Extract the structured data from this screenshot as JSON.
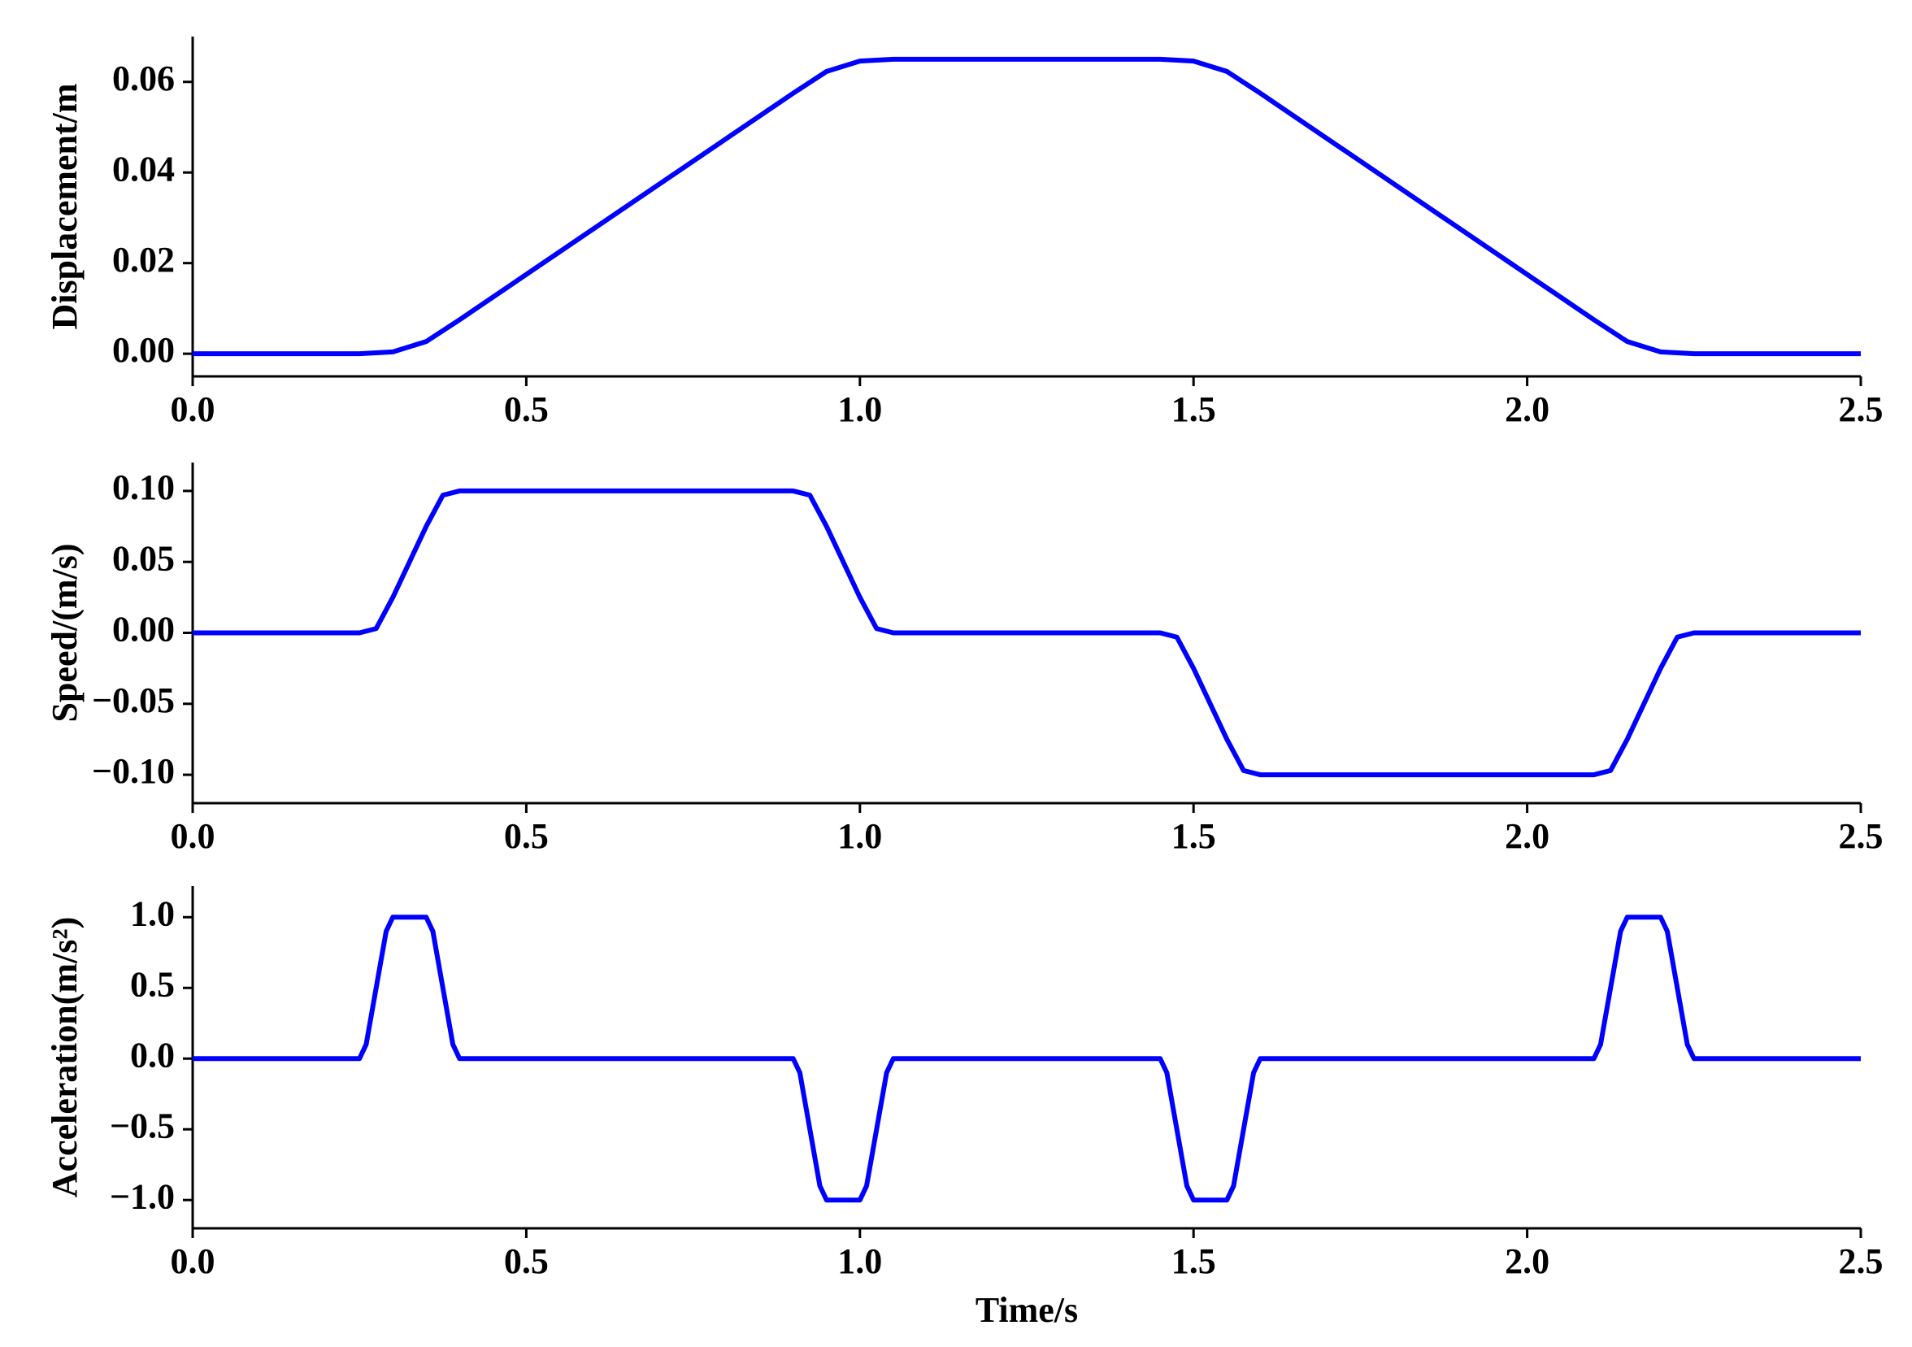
{
  "chart_data": [
    {
      "type": "line",
      "ylabel": "Displacement/m",
      "color": "#0000ff",
      "x": [
        0,
        0.25,
        0.3,
        0.35,
        0.4,
        0.9,
        0.95,
        1.0,
        1.05,
        1.45,
        1.5,
        1.55,
        1.6,
        2.1,
        2.15,
        2.2,
        2.25,
        2.5
      ],
      "values": [
        0,
        0,
        0.0004,
        0.0027,
        0.0075,
        0.0575,
        0.0623,
        0.0646,
        0.065,
        0.065,
        0.0646,
        0.0623,
        0.0575,
        0.0075,
        0.0027,
        0.0004,
        0,
        0
      ],
      "xlim": [
        0,
        2.5
      ],
      "xticks": [
        {
          "value": 0,
          "label": "0.0"
        },
        0.5,
        {
          "value": 1,
          "label": "1.0"
        },
        1.5,
        {
          "value": 2,
          "label": "2.0"
        },
        2.5
      ],
      "ylim": [
        -0.005,
        0.07
      ],
      "yticks": [
        {
          "value": 0,
          "label": "0.00"
        },
        0.02,
        0.04,
        0.06
      ]
    },
    {
      "type": "line",
      "ylabel": "Speed/(m/s)",
      "color": "#0000ff",
      "x": [
        0,
        0.25,
        0.275,
        0.3,
        0.35,
        0.375,
        0.4,
        0.9,
        0.925,
        0.95,
        1.0,
        1.025,
        1.05,
        1.45,
        1.475,
        1.5,
        1.55,
        1.575,
        1.6,
        2.1,
        2.125,
        2.15,
        2.2,
        2.225,
        2.25,
        2.5
      ],
      "values": [
        0,
        0,
        0.003,
        0.025,
        0.075,
        0.097,
        0.1,
        0.1,
        0.097,
        0.075,
        0.025,
        0.003,
        0,
        0,
        -0.003,
        -0.025,
        -0.075,
        -0.097,
        -0.1,
        -0.1,
        -0.097,
        -0.075,
        -0.025,
        -0.003,
        0,
        0
      ],
      "xlim": [
        0,
        2.5
      ],
      "xticks": [
        {
          "value": 0,
          "label": "0.0"
        },
        0.5,
        {
          "value": 1,
          "label": "1.0"
        },
        1.5,
        {
          "value": 2,
          "label": "2.0"
        },
        2.5
      ],
      "ylim": [
        -0.12,
        0.12
      ],
      "yticks": [
        {
          "value": -0.1,
          "label": "−0.10"
        },
        {
          "value": -0.05,
          "label": "−0.05"
        },
        {
          "value": 0,
          "label": "0.00"
        },
        0.05,
        {
          "value": 0.1,
          "label": "0.10"
        }
      ]
    },
    {
      "type": "line",
      "ylabel": "Acceleration(m/s²)",
      "xlabel": "Time/s",
      "color": "#0000ff",
      "x": [
        0,
        0.25,
        0.26,
        0.275,
        0.29,
        0.3,
        0.35,
        0.36,
        0.375,
        0.39,
        0.4,
        0.9,
        0.91,
        0.925,
        0.94,
        0.95,
        1.0,
        1.01,
        1.025,
        1.04,
        1.05,
        1.45,
        1.46,
        1.475,
        1.49,
        1.5,
        1.55,
        1.56,
        1.575,
        1.59,
        1.6,
        2.1,
        2.11,
        2.125,
        2.14,
        2.15,
        2.2,
        2.21,
        2.225,
        2.24,
        2.25,
        2.5
      ],
      "values": [
        0,
        0,
        0.1,
        0.5,
        0.9,
        1,
        1,
        0.9,
        0.5,
        0.1,
        0,
        0,
        -0.1,
        -0.5,
        -0.9,
        -1,
        -1,
        -0.9,
        -0.5,
        -0.1,
        0,
        0,
        -0.1,
        -0.5,
        -0.9,
        -1,
        -1,
        -0.9,
        -0.5,
        -0.1,
        0,
        0,
        0.1,
        0.5,
        0.9,
        1,
        1,
        0.9,
        0.5,
        0.1,
        0,
        0
      ],
      "xlim": [
        0,
        2.5
      ],
      "xticks": [
        {
          "value": 0,
          "label": "0.0"
        },
        0.5,
        {
          "value": 1,
          "label": "1.0"
        },
        1.5,
        {
          "value": 2,
          "label": "2.0"
        },
        2.5
      ],
      "ylim": [
        -1.2,
        1.22
      ],
      "yticks": [
        {
          "value": -1,
          "label": "−1.0"
        },
        {
          "value": -0.5,
          "label": "−0.5"
        },
        {
          "value": 0,
          "label": "0.0"
        },
        0.5,
        {
          "value": 1,
          "label": "1.0"
        }
      ]
    }
  ]
}
